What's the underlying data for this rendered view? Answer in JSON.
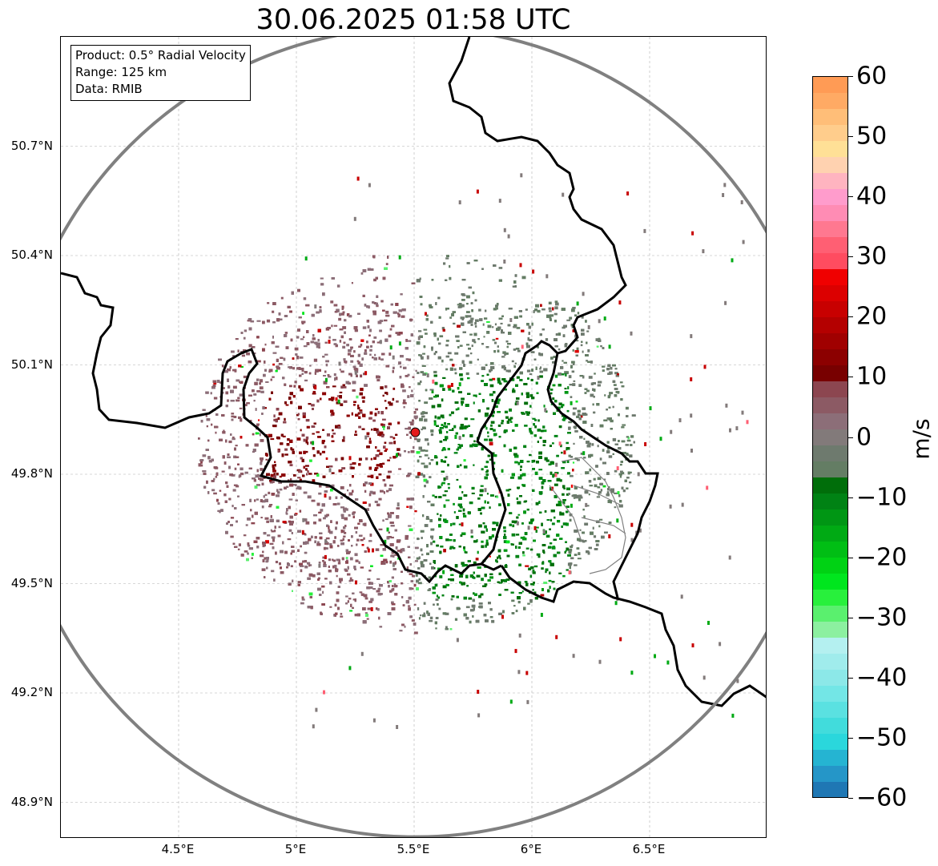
{
  "title": "30.06.2025 01:58 UTC",
  "info": {
    "product": "Product: 0.5° Radial Velocity",
    "range": "Range: 125 km",
    "data": "Data: RMIB"
  },
  "map": {
    "lon_range": [
      4.0,
      7.0
    ],
    "lat_range": [
      48.8,
      51.0
    ],
    "radar_site": {
      "lon": 5.505,
      "lat": 49.915
    },
    "range_km": 125,
    "lat_ticks": [
      {
        "value": 48.9,
        "label": "48.9°N"
      },
      {
        "value": 49.2,
        "label": "49.2°N"
      },
      {
        "value": 49.5,
        "label": "49.5°N"
      },
      {
        "value": 49.8,
        "label": "49.8°N"
      },
      {
        "value": 50.1,
        "label": "50.1°N"
      },
      {
        "value": 50.4,
        "label": "50.4°N"
      },
      {
        "value": 50.7,
        "label": "50.7°N"
      }
    ],
    "lon_ticks": [
      {
        "value": 4.5,
        "label": "4.5°E"
      },
      {
        "value": 5.0,
        "label": "5°E"
      },
      {
        "value": 5.5,
        "label": "5.5°E"
      },
      {
        "value": 6.0,
        "label": "6°E"
      },
      {
        "value": 6.5,
        "label": "6.5°E"
      }
    ],
    "gridlines": true,
    "range_ring_color": "#808080",
    "border_color": "#000000"
  },
  "colorbar": {
    "unit": "m/s",
    "min": -60,
    "max": 60,
    "ticks": [
      {
        "value": 60,
        "label": "60"
      },
      {
        "value": 50,
        "label": "50"
      },
      {
        "value": 40,
        "label": "40"
      },
      {
        "value": 30,
        "label": "30"
      },
      {
        "value": 20,
        "label": "20"
      },
      {
        "value": 10,
        "label": "10"
      },
      {
        "value": 0,
        "label": "0"
      },
      {
        "value": -10,
        "label": "−10"
      },
      {
        "value": -20,
        "label": "−20"
      },
      {
        "value": -30,
        "label": "−30"
      },
      {
        "value": -40,
        "label": "−40"
      },
      {
        "value": -50,
        "label": "−50"
      },
      {
        "value": -60,
        "label": "−60"
      }
    ],
    "colors": [
      "#1f77b4",
      "#2596c8",
      "#25b4d2",
      "#2ad7dc",
      "#41dcdc",
      "#5ae1e1",
      "#73e6e6",
      "#8ce8e8",
      "#a0ecec",
      "#b4f0f0",
      "#8cf0a0",
      "#5af06e",
      "#28f03c",
      "#00e61e",
      "#00d214",
      "#00be14",
      "#00aa14",
      "#009614",
      "#008214",
      "#006e0a",
      "#647d64",
      "#6e7a6e",
      "#827a7a",
      "#8c6e78",
      "#8c5a64",
      "#8c4650",
      "#780000",
      "#8c0000",
      "#a00000",
      "#b40000",
      "#c80000",
      "#dc0000",
      "#f00000",
      "#ff4c60",
      "#ff5f73",
      "#ff7890",
      "#ff8cb4",
      "#ff9ccc",
      "#ffb4c0",
      "#ffd2b0",
      "#ffe096",
      "#ffcd8c",
      "#ffbe78",
      "#ffaa64",
      "#ff9b55"
    ]
  }
}
